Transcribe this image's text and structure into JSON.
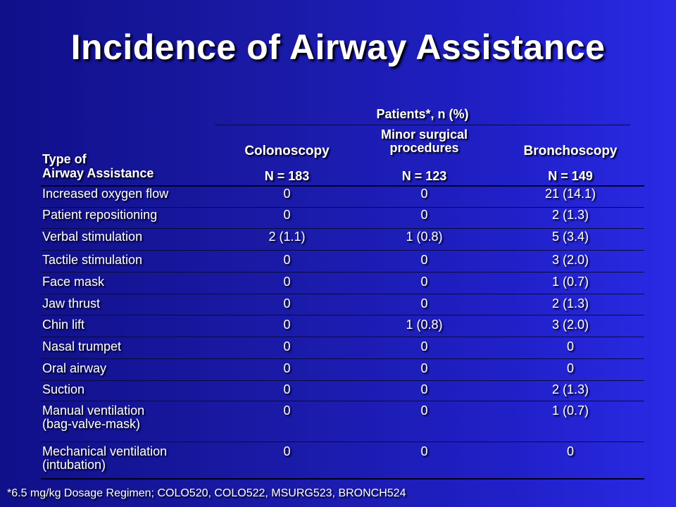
{
  "slide": {
    "title": "Incidence of Airway Assistance",
    "footnote": "*6.5 mg/kg Dosage Regimen; COLO520, COLO522, MSURG523, BRONCH524"
  },
  "table": {
    "group_header": "Patients*, n (%)",
    "type_header_line1": "Type of",
    "type_header_line2": "Airway Assistance",
    "columns": [
      {
        "name_line1": "Colonoscopy",
        "name_line2": "",
        "n": "N = 183"
      },
      {
        "name_line1": "Minor surgical",
        "name_line2": "procedures",
        "n": "N = 123"
      },
      {
        "name_line1": "Bronchoscopy",
        "name_line2": "",
        "n": "N = 149"
      }
    ],
    "rows": [
      {
        "type_line1": "Increased oxygen flow",
        "type_line2": "",
        "colonoscopy": "0",
        "minor_surgical": "0",
        "bronchoscopy": "21 (14.1)"
      },
      {
        "type_line1": "Patient repositioning",
        "type_line2": "",
        "colonoscopy": "0",
        "minor_surgical": "0",
        "bronchoscopy": "2 (1.3)"
      },
      {
        "type_line1": "Verbal stimulation",
        "type_line2": "",
        "colonoscopy": "2 (1.1)",
        "minor_surgical": "1 (0.8)",
        "bronchoscopy": "5 (3.4)"
      },
      {
        "type_line1": "Tactile stimulation",
        "type_line2": "",
        "colonoscopy": "0",
        "minor_surgical": "0",
        "bronchoscopy": "3 (2.0)"
      },
      {
        "type_line1": "Face mask",
        "type_line2": "",
        "colonoscopy": "0",
        "minor_surgical": "0",
        "bronchoscopy": "1 (0.7)"
      },
      {
        "type_line1": "Jaw thrust",
        "type_line2": "",
        "colonoscopy": "0",
        "minor_surgical": "0",
        "bronchoscopy": "2 (1.3)"
      },
      {
        "type_line1": "Chin lift",
        "type_line2": "",
        "colonoscopy": "0",
        "minor_surgical": "1 (0.8)",
        "bronchoscopy": "3 (2.0)"
      },
      {
        "type_line1": "Nasal trumpet",
        "type_line2": "",
        "colonoscopy": "0",
        "minor_surgical": "0",
        "bronchoscopy": "0"
      },
      {
        "type_line1": "Oral airway",
        "type_line2": "",
        "colonoscopy": "0",
        "minor_surgical": "0",
        "bronchoscopy": "0"
      },
      {
        "type_line1": "Suction",
        "type_line2": "",
        "colonoscopy": "0",
        "minor_surgical": "0",
        "bronchoscopy": "2 (1.3)"
      },
      {
        "type_line1": "Manual ventilation",
        "type_line2": "(bag-valve-mask)",
        "colonoscopy": "0",
        "minor_surgical": "0",
        "bronchoscopy": "1 (0.7)"
      },
      {
        "type_line1": "Mechanical ventilation",
        "type_line2": "(intubation)",
        "colonoscopy": "0",
        "minor_surgical": "0",
        "bronchoscopy": "0"
      }
    ]
  }
}
